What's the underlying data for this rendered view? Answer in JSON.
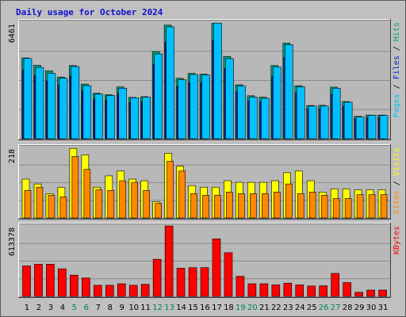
{
  "chart_data": {
    "title": "Daily usage for October 2024",
    "categories": [
      "1",
      "2",
      "3",
      "4",
      "5",
      "6",
      "7",
      "8",
      "9",
      "10",
      "11",
      "12",
      "13",
      "14",
      "15",
      "16",
      "17",
      "18",
      "19",
      "20",
      "21",
      "22",
      "23",
      "24",
      "25",
      "26",
      "27",
      "28",
      "29",
      "30",
      "31"
    ],
    "weekend_days": [
      "5",
      "6",
      "12",
      "13",
      "19",
      "20",
      "26",
      "27"
    ],
    "colors": {
      "hits": "#00a080",
      "files": "#0020d0",
      "pages": "#00c0ff",
      "visits": "#ffff00",
      "sites": "#ff8800",
      "kbytes": "#ff0000",
      "weekday_label": "#000000",
      "weekend_label": "#008060"
    },
    "panels": [
      {
        "id": "traffic",
        "type": "bar",
        "ymax_label": "6461",
        "ymax": 6461,
        "legend": [
          {
            "name": "Pages",
            "color": "#00c0ff"
          },
          {
            "name": "Files",
            "color": "#0020d0"
          },
          {
            "name": "Hits",
            "color": "#00a080"
          }
        ],
        "series": [
          {
            "name": "Hits",
            "values": [
              4480,
              4070,
              3760,
              3420,
              4060,
              3030,
              2520,
              2440,
              2870,
              2290,
              2330,
              4830,
              6300,
              3350,
              3620,
              3580,
              6400,
              4560,
              2990,
              2380,
              2300,
              4060,
              5300,
              2940,
              1840,
              1850,
              2860,
              2060,
              1240,
              1310,
              1310
            ]
          },
          {
            "name": "Files",
            "values": [
              3800,
              3500,
              3200,
              2950,
              3450,
              2650,
              2200,
              2150,
              2500,
              2000,
              2050,
              4100,
              5350,
              2900,
              3100,
              3100,
              5450,
              3900,
              2600,
              2100,
              2050,
              3450,
              4500,
              2550,
              1650,
              1650,
              2450,
              1800,
              1100,
              1150,
              1150
            ]
          },
          {
            "name": "Pages",
            "values": [
              4450,
              3950,
              3620,
              3350,
              4000,
              2940,
              2470,
              2400,
              2800,
              2270,
              2300,
              4700,
              6200,
              3270,
              3560,
              3530,
              6410,
              4440,
              2920,
              2300,
              2240,
              3980,
              5220,
              2870,
              1810,
              1810,
              2800,
              2020,
              1200,
              1300,
              1290
            ]
          }
        ]
      },
      {
        "id": "visits",
        "type": "bar",
        "ymax_label": "218",
        "ymax": 218,
        "legend": [
          {
            "name": "Sites",
            "color": "#ff8800"
          },
          {
            "name": "Visits",
            "color": "#ffff00"
          }
        ],
        "series": [
          {
            "name": "Visits",
            "values": [
              120,
              105,
              75,
              95,
              215,
              195,
              95,
              130,
              145,
              120,
              115,
              50,
              200,
              160,
              100,
              95,
              95,
              115,
              110,
              110,
              110,
              115,
              140,
              145,
              115,
              80,
              90,
              90,
              87,
              87,
              87
            ]
          },
          {
            "name": "Sites",
            "values": [
              85,
              95,
              70,
              65,
              190,
              150,
              87,
              85,
              115,
              110,
              85,
              45,
              175,
              145,
              75,
              70,
              70,
              80,
              75,
              75,
              75,
              80,
              105,
              75,
              80,
              70,
              60,
              60,
              72,
              72,
              72
            ]
          }
        ]
      },
      {
        "id": "kbytes",
        "type": "bar",
        "ymax_label": "613378",
        "ymax": 613378,
        "legend": [
          {
            "name": "KBytes",
            "color": "#ff0000"
          }
        ],
        "series": [
          {
            "name": "KBytes",
            "values": [
              265000,
              280000,
              280000,
              240000,
              185000,
              160000,
              97000,
              97000,
              110000,
              97000,
              105000,
              323000,
              613000,
              245000,
              250000,
              250000,
              500000,
              380000,
              175000,
              110000,
              110000,
              100000,
              115000,
              100000,
              90000,
              92000,
              200000,
              120000,
              36000,
              55000,
              55000
            ]
          }
        ]
      }
    ]
  }
}
